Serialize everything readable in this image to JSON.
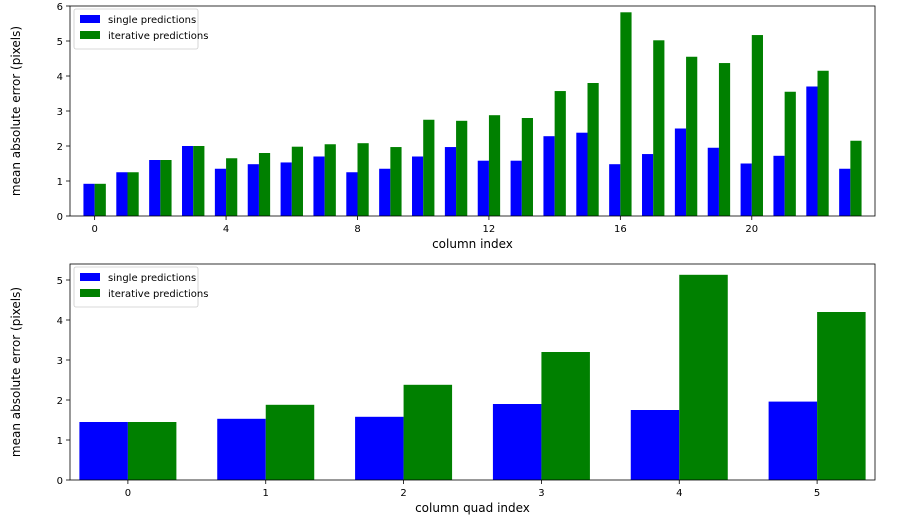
{
  "chart_data": [
    {
      "type": "bar",
      "xlabel": "column index",
      "ylabel": "mean absolute error (pixels)",
      "ylim": [
        0,
        6
      ],
      "yticks": [
        0,
        1,
        2,
        3,
        4,
        5,
        6
      ],
      "xlim": [
        -0.75,
        23.75
      ],
      "xticks": [
        0,
        4,
        8,
        12,
        16,
        20
      ],
      "legend_position": "top-left",
      "categories": [
        0,
        1,
        2,
        3,
        4,
        5,
        6,
        7,
        8,
        9,
        10,
        11,
        12,
        13,
        14,
        15,
        16,
        17,
        18,
        19,
        20,
        21,
        22,
        23
      ],
      "series": [
        {
          "name": "single predictions",
          "color": "#0000ff",
          "values": [
            0.92,
            1.25,
            1.6,
            2.0,
            1.35,
            1.48,
            1.53,
            1.7,
            1.25,
            1.35,
            1.7,
            1.97,
            1.58,
            1.58,
            2.28,
            2.38,
            1.48,
            1.77,
            2.5,
            1.95,
            1.5,
            1.72,
            3.7,
            1.35
          ]
        },
        {
          "name": "iterative predictions",
          "color": "#008000",
          "values": [
            0.92,
            1.25,
            1.6,
            2.0,
            1.65,
            1.8,
            1.98,
            2.05,
            2.08,
            1.97,
            2.75,
            2.72,
            2.88,
            2.8,
            3.57,
            3.8,
            5.82,
            5.02,
            4.55,
            4.37,
            5.17,
            3.55,
            4.15,
            2.15
          ]
        }
      ]
    },
    {
      "type": "bar",
      "xlabel": "column quad index",
      "ylabel": "mean absolute error (pixels)",
      "ylim": [
        0,
        5.4
      ],
      "yticks": [
        0,
        1,
        2,
        3,
        4,
        5
      ],
      "xlim": [
        -0.42,
        5.42
      ],
      "xticks": [
        0,
        1,
        2,
        3,
        4,
        5
      ],
      "legend_position": "top-left",
      "categories": [
        0,
        1,
        2,
        3,
        4,
        5
      ],
      "series": [
        {
          "name": "single predictions",
          "color": "#0000ff",
          "values": [
            1.45,
            1.53,
            1.58,
            1.9,
            1.75,
            1.96
          ]
        },
        {
          "name": "iterative predictions",
          "color": "#008000",
          "values": [
            1.45,
            1.88,
            2.38,
            3.2,
            5.13,
            4.2
          ]
        }
      ]
    }
  ]
}
